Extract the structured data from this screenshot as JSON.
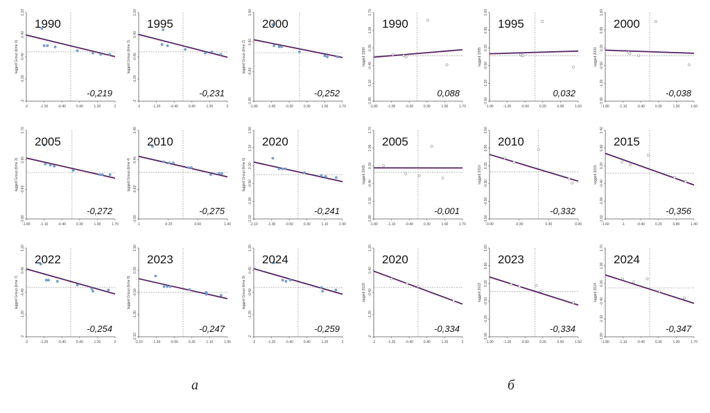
{
  "panel_labels": [
    "a",
    "б"
  ],
  "colors": {
    "regression_line": "#3a1f5c",
    "line_highlight": "#c24a8a",
    "point": "#7aa4d6",
    "reference": "#9a9a9a",
    "axis": "#555555"
  },
  "chart_data": [
    {
      "type": "scatter",
      "title": "1990",
      "slope_label": "-0,219",
      "ylabel": "lagged Group (time 0)",
      "x_ticks": [
        "-2",
        "-1.20",
        "-0.40",
        "0.40",
        "1.20",
        "2"
      ],
      "y_ticks": [
        "1.20",
        "0.40",
        "-0.40",
        "-1.20",
        "-2"
      ],
      "xlim": [
        -2,
        2
      ],
      "ylim": [
        -2,
        1.6
      ],
      "points": [
        [
          -1.3,
          0.95
        ],
        [
          -1.2,
          0.25
        ],
        [
          -1.05,
          0.25
        ],
        [
          -0.7,
          0.2
        ],
        [
          0.3,
          0.05
        ],
        [
          1.0,
          -0.05
        ],
        [
          1.35,
          -0.1
        ],
        [
          1.75,
          -0.1
        ]
      ],
      "fit": {
        "slope": -0.219,
        "intercept": 0.25
      },
      "ref": {
        "x": 0,
        "y": 0
      }
    },
    {
      "type": "scatter",
      "title": "1995",
      "slope_label": "-0,231",
      "ylabel": "lagged Group (time 1)",
      "x_ticks": [
        "-2",
        "-1.20",
        "-0.40",
        "0.40",
        "1.20",
        "2"
      ],
      "y_ticks": [
        "1.20",
        "0.40",
        "-0.40",
        "-1.20",
        "-2"
      ],
      "xlim": [
        -2,
        2
      ],
      "ylim": [
        -2,
        1.6
      ],
      "points": [
        [
          -0.9,
          0.9
        ],
        [
          -0.95,
          0.3
        ],
        [
          -0.7,
          0.25
        ],
        [
          0.1,
          0.1
        ],
        [
          1.0,
          -0.05
        ],
        [
          1.3,
          0.0
        ],
        [
          1.7,
          -0.1
        ]
      ],
      "fit": {
        "slope": -0.231,
        "intercept": 0.25
      },
      "ref": {
        "x": 0,
        "y": 0
      }
    },
    {
      "type": "scatter",
      "title": "2000",
      "slope_label": "-0,252",
      "ylabel": "lagged Group (time 2)",
      "x_ticks": [
        "-1.80",
        "-1.00",
        "-0.30",
        "0.30",
        "1.00",
        "1.70"
      ],
      "y_ticks": [
        "1.80",
        "0.60",
        "-0.60",
        "-1.80"
      ],
      "xlim": [
        -1.8,
        1.7
      ],
      "ylim": [
        -2.4,
        2.0
      ],
      "points": [
        [
          -1.05,
          1.4
        ],
        [
          -1.0,
          0.35
        ],
        [
          -0.8,
          0.3
        ],
        [
          -0.7,
          0.3
        ],
        [
          0.0,
          0.05
        ],
        [
          1.0,
          -0.15
        ],
        [
          1.1,
          -0.2
        ],
        [
          1.5,
          -0.2
        ]
      ],
      "fit": {
        "slope": -0.252,
        "intercept": 0.2
      },
      "ref": {
        "x": 0,
        "y": 0
      }
    },
    {
      "type": "scatter",
      "title": "2005",
      "slope_label": "-0,272",
      "ylabel": "lagged Group (time 3)",
      "x_ticks": [
        "-1.80",
        "-1.10",
        "-0.40",
        "0.30",
        "1.00",
        "1.70"
      ],
      "y_ticks": [
        "1.70",
        "0.60",
        "-0.60",
        "-1.80"
      ],
      "xlim": [
        -1.8,
        1.7
      ],
      "ylim": [
        -2.2,
        2.0
      ],
      "points": [
        [
          -1.1,
          1.3
        ],
        [
          -1.05,
          0.4
        ],
        [
          -0.85,
          0.35
        ],
        [
          -0.7,
          0.3
        ],
        [
          0.05,
          0.1
        ],
        [
          1.1,
          -0.1
        ],
        [
          1.2,
          -0.1
        ],
        [
          1.5,
          -0.1
        ]
      ],
      "fit": {
        "slope": -0.272,
        "intercept": 0.2
      },
      "ref": {
        "x": 0,
        "y": 0
      }
    },
    {
      "type": "scatter",
      "title": "2010",
      "slope_label": "-0,275",
      "ylabel": "lagged Group (time 4)",
      "x_ticks": [
        "-1",
        "-0.20",
        "0.60",
        "1.40"
      ],
      "y_ticks": [
        "1.40",
        "0.40",
        "-0.60",
        "-1.60"
      ],
      "xlim": [
        -1.6,
        1.6
      ],
      "ylim": [
        -2.0,
        1.8
      ],
      "points": [
        [
          -1.1,
          1.1
        ],
        [
          -0.7,
          0.45
        ],
        [
          -0.5,
          0.4
        ],
        [
          -0.35,
          0.4
        ],
        [
          0.2,
          0.2
        ],
        [
          0.3,
          0.2
        ],
        [
          1.0,
          -0.1
        ],
        [
          1.3,
          -0.05
        ],
        [
          1.4,
          -0.05
        ]
      ],
      "fit": {
        "slope": -0.275,
        "intercept": 0.25
      },
      "ref": {
        "x": 0,
        "y": 0
      }
    },
    {
      "type": "scatter",
      "title": "2020",
      "slope_label": "-0,241",
      "ylabel": "lagged Group (time 6)",
      "x_ticks": [
        "-2.10",
        "-1.30",
        "-0.50",
        "0.30",
        "1.10",
        "1.90"
      ],
      "y_ticks": [
        "1.90",
        "1.10",
        "0.30",
        "-0.50",
        "-1.30",
        "-2.10"
      ],
      "xlim": [
        -2.1,
        2.1
      ],
      "ylim": [
        -2.3,
        2.3
      ],
      "points": [
        [
          -1.2,
          0.85
        ],
        [
          -0.9,
          0.3
        ],
        [
          -0.75,
          0.3
        ],
        [
          -0.6,
          0.3
        ],
        [
          0.3,
          0.1
        ],
        [
          1.1,
          -0.05
        ],
        [
          1.3,
          -0.1
        ],
        [
          1.8,
          -0.15
        ]
      ],
      "fit": {
        "slope": -0.241,
        "intercept": 0.15
      },
      "ref": {
        "x": 0,
        "y": 0
      }
    },
    {
      "type": "scatter",
      "title": "2022",
      "slope_label": "-0,254",
      "ylabel": "lagged Group (time 7)",
      "x_ticks": [
        "-2",
        "-1.20",
        "-0.40",
        "0.40",
        "1.20",
        "2"
      ],
      "y_ticks": [
        "1.20",
        "0.40",
        "-0.40",
        "-1.20",
        "-2"
      ],
      "xlim": [
        -2,
        2
      ],
      "ylim": [
        -2,
        1.6
      ],
      "points": [
        [
          -1.35,
          0.95
        ],
        [
          -1.1,
          0.3
        ],
        [
          -1.0,
          0.3
        ],
        [
          -0.6,
          0.25
        ],
        [
          0.3,
          0.1
        ],
        [
          0.95,
          -0.05
        ],
        [
          1.0,
          -0.15
        ],
        [
          1.7,
          -0.1
        ]
      ],
      "fit": {
        "slope": -0.254,
        "intercept": 0.25
      },
      "ref": {
        "x": 0,
        "y": 0
      }
    },
    {
      "type": "scatter",
      "title": "2023",
      "slope_label": "-0,247",
      "ylabel": "lagged Group (time 8)",
      "x_ticks": [
        "-2.10",
        "-1.30",
        "-0.50",
        "0.30",
        "1.10",
        "1.90"
      ],
      "y_ticks": [
        "1.90",
        "0.30",
        "-0.50",
        "-1.30",
        "-2.10"
      ],
      "xlim": [
        -2.1,
        2.1
      ],
      "ylim": [
        -2.3,
        2.3
      ],
      "points": [
        [
          -1.3,
          0.85
        ],
        [
          -0.9,
          0.3
        ],
        [
          -0.75,
          0.3
        ],
        [
          -0.6,
          0.3
        ],
        [
          0.3,
          0.15
        ],
        [
          1.1,
          0.0
        ],
        [
          1.1,
          -0.1
        ],
        [
          1.8,
          -0.15
        ]
      ],
      "fit": {
        "slope": -0.247,
        "intercept": 0.2
      },
      "ref": {
        "x": 0,
        "y": 0
      }
    },
    {
      "type": "scatter",
      "title": "2024",
      "slope_label": "-0,259",
      "ylabel": "lagged Group (time 9)",
      "x_ticks": [
        "-2",
        "-1.20",
        "-0.40",
        "0.40",
        "1.20",
        "2"
      ],
      "y_ticks": [
        "1.20",
        "0.40",
        "-0.40",
        "-1.20",
        "-2"
      ],
      "xlim": [
        -2,
        2
      ],
      "ylim": [
        -2,
        1.6
      ],
      "points": [
        [
          -1.1,
          1.0
        ],
        [
          -0.7,
          0.3
        ],
        [
          -0.55,
          0.25
        ],
        [
          -0.35,
          0.3
        ],
        [
          1.05,
          0.0
        ],
        [
          1.1,
          -0.15
        ],
        [
          1.7,
          -0.1
        ]
      ],
      "fit": {
        "slope": -0.259,
        "intercept": 0.25
      },
      "ref": {
        "x": 0,
        "y": 0
      }
    },
    {
      "type": "scatter",
      "title": "1990",
      "slope_label": "0,088",
      "ylabel": "lagged 1990",
      "x_ticks": [
        "-1.80",
        "-1.00",
        "-0.30",
        "0.30",
        "1.00",
        "1.70"
      ],
      "y_ticks": [
        "1.70",
        "1.00",
        "0.30",
        "-0.40",
        "-1.10",
        "-1.80"
      ],
      "xlim": [
        -1.8,
        1.9
      ],
      "ylim": [
        -2.0,
        1.9
      ],
      "points": [
        [
          -1.0,
          0.05
        ],
        [
          -0.55,
          0.0
        ],
        [
          -0.45,
          -0.05
        ],
        [
          0.45,
          1.55
        ],
        [
          1.25,
          -0.4
        ]
      ],
      "fit": {
        "slope": 0.088,
        "intercept": 0.1
      },
      "ref": {
        "x": 0,
        "y": 0
      },
      "style": "hollow"
    },
    {
      "type": "scatter",
      "title": "1995",
      "slope_label": "0,032",
      "ylabel": "lagged 1995",
      "x_ticks": [
        "-1.90",
        "-1.20",
        "-0.50",
        "0.20",
        "0.90",
        "1.60"
      ],
      "y_ticks": [
        "1.60",
        "0.90",
        "0.20",
        "-0.50",
        "-1.20",
        "-1.90"
      ],
      "xlim": [
        -1.9,
        1.8
      ],
      "ylim": [
        -2.0,
        1.9
      ],
      "points": [
        [
          -0.6,
          0.05
        ],
        [
          -0.55,
          0.0
        ],
        [
          -0.5,
          0.0
        ],
        [
          0.3,
          1.5
        ],
        [
          1.6,
          -0.5
        ]
      ],
      "fit": {
        "slope": 0.032,
        "intercept": 0.15
      },
      "ref": {
        "x": 0,
        "y": 0
      },
      "style": "hollow"
    },
    {
      "type": "scatter",
      "title": "2000",
      "slope_label": "-0,038",
      "ylabel": "lagged 2000",
      "x_ticks": [
        "-1.80",
        "-1.10",
        "-0.40",
        "0.30",
        "1.00",
        "1.60"
      ],
      "y_ticks": [
        "1.60",
        "0.90",
        "0.20",
        "-0.50",
        "-1.20",
        "-1.90"
      ],
      "xlim": [
        -1.8,
        1.8
      ],
      "ylim": [
        -2.0,
        1.9
      ],
      "points": [
        [
          -0.85,
          0.15
        ],
        [
          -0.8,
          0.1
        ],
        [
          -0.45,
          0.0
        ],
        [
          0.25,
          1.5
        ],
        [
          1.6,
          -0.4
        ]
      ],
      "fit": {
        "slope": -0.038,
        "intercept": 0.18
      },
      "ref": {
        "x": 0,
        "y": 0
      },
      "style": "hollow"
    },
    {
      "type": "scatter",
      "title": "2005",
      "slope_label": "-0,001",
      "ylabel": "lagged 2005",
      "x_ticks": [
        "-1.80",
        "-1.10",
        "-0.40",
        "0.30",
        "1.00",
        "1.70"
      ],
      "y_ticks": [
        "1.70",
        "1.00",
        "0.30",
        "-0.40",
        "-1.10",
        "-1.80"
      ],
      "xlim": [
        -1.8,
        1.8
      ],
      "ylim": [
        -2.0,
        1.9
      ],
      "points": [
        [
          -1.4,
          0.35
        ],
        [
          -0.5,
          0.0
        ],
        [
          0.05,
          -0.1
        ],
        [
          0.55,
          1.2
        ],
        [
          1.0,
          -0.2
        ]
      ],
      "fit": {
        "slope": -0.001,
        "intercept": 0.25
      },
      "ref": {
        "x": 0,
        "y": 0.05
      },
      "style": "hollow"
    },
    {
      "type": "scatter",
      "title": "2010",
      "slope_label": "-0,332",
      "ylabel": "lagged 2010",
      "x_ticks": [
        "-0.90",
        "-0.30",
        "0.30",
        "0.90"
      ],
      "y_ticks": [
        "1.50",
        "0.90",
        "0.30",
        "-0.30",
        "-0.90",
        "-1.50"
      ],
      "xlim": [
        -1.6,
        1.3
      ],
      "ylim": [
        -1.6,
        1.6
      ],
      "points": [
        [
          -1.1,
          0.6
        ],
        [
          -0.8,
          0.45
        ],
        [
          0.0,
          0.9
        ],
        [
          1.0,
          -0.15
        ],
        [
          1.1,
          -0.3
        ]
      ],
      "fit": {
        "slope": -0.332,
        "intercept": 0.2
      },
      "ref": {
        "x": 0,
        "y": 0.1
      },
      "style": "hollow"
    },
    {
      "type": "scatter",
      "title": "2015",
      "slope_label": "-0,356",
      "ylabel": "lagged 2015",
      "x_ticks": [
        "-1.60",
        "-1",
        "-0.40",
        "0.20",
        "0.80",
        "1.40"
      ],
      "y_ticks": [
        "1.40",
        "0.80",
        "0.20",
        "-0.40",
        "-1.00",
        "-1.60"
      ],
      "xlim": [
        -1.6,
        1.6
      ],
      "ylim": [
        -1.6,
        1.6
      ],
      "points": [
        [
          -1.0,
          0.45
        ],
        [
          -0.7,
          0.35
        ],
        [
          -0.05,
          0.7
        ],
        [
          0.9,
          -0.1
        ],
        [
          1.3,
          -0.25
        ]
      ],
      "fit": {
        "slope": -0.356,
        "intercept": 0.2
      },
      "ref": {
        "x": 0,
        "y": 0.05
      },
      "style": "hollow"
    },
    {
      "type": "scatter",
      "title": "2020",
      "slope_label": "-0,334",
      "ylabel": "lagged 2020",
      "x_ticks": [
        "-2",
        "-1.20",
        "-0.40",
        "0.40",
        "1.20",
        "2"
      ],
      "y_ticks": [
        "1.20",
        "0.40",
        "-0.40",
        "-1.20",
        "-2"
      ],
      "xlim": [
        -2,
        2
      ],
      "ylim": [
        -2,
        1.6
      ],
      "points": [
        [
          -1.2,
          0.35
        ],
        [
          -0.5,
          0.15
        ],
        [
          0.0,
          0.05
        ],
        [
          1.6,
          -0.55
        ]
      ],
      "fit": {
        "slope": -0.334,
        "intercept": 0.0
      },
      "ref": {
        "x": 0,
        "y": 0
      },
      "style": "hollow"
    },
    {
      "type": "scatter",
      "title": "2023",
      "slope_label": "-0,334",
      "ylabel": "lagged 2023",
      "x_ticks": [
        "-1.90",
        "-1.20",
        "-0.50",
        "0.20",
        "0.90",
        "1.60"
      ],
      "y_ticks": [
        "1.60",
        "0.90",
        "0.20",
        "-0.50",
        "-1.20",
        "-1.90"
      ],
      "xlim": [
        -1.9,
        1.8
      ],
      "ylim": [
        -2.0,
        1.9
      ],
      "points": [
        [
          -1.0,
          0.3
        ],
        [
          -0.65,
          0.2
        ],
        [
          0.05,
          0.25
        ],
        [
          0.25,
          0.0
        ],
        [
          1.6,
          -0.5
        ]
      ],
      "fit": {
        "slope": -0.334,
        "intercept": 0.0
      },
      "ref": {
        "x": 0,
        "y": 0
      },
      "style": "hollow"
    },
    {
      "type": "scatter",
      "title": "2024",
      "slope_label": "-0,347",
      "ylabel": "lagged 2024",
      "x_ticks": [
        "-1.80",
        "-1.10",
        "-0.40",
        "0.30",
        "1.00",
        "1.70"
      ],
      "y_ticks": [
        "1.70",
        "1.00",
        "0.30",
        "-0.40",
        "-1.10",
        "-1.80"
      ],
      "xlim": [
        -1.8,
        1.8
      ],
      "ylim": [
        -2.0,
        1.9
      ],
      "points": [
        [
          -1.1,
          0.55
        ],
        [
          -0.65,
          0.4
        ],
        [
          -0.1,
          0.55
        ],
        [
          0.4,
          0.0
        ],
        [
          1.4,
          -0.3
        ]
      ],
      "fit": {
        "slope": -0.347,
        "intercept": 0.1
      },
      "ref": {
        "x": 0,
        "y": 0.15
      },
      "style": "hollow"
    }
  ]
}
